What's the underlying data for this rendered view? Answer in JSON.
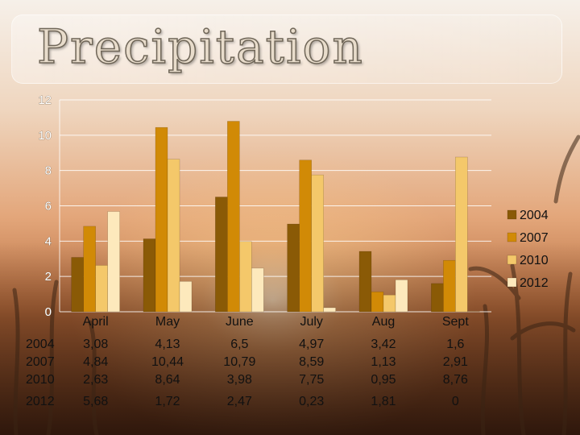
{
  "title": "Precipitation",
  "chart_data": {
    "type": "bar",
    "categories": [
      "April",
      "May",
      "June",
      "July",
      "Aug",
      "Sept"
    ],
    "series": [
      {
        "name": "2004",
        "values": [
          3.08,
          4.13,
          6.5,
          4.97,
          3.42,
          1.6
        ],
        "labels": [
          "3,08",
          "4,13",
          "6,5",
          "4,97",
          "3,42",
          "1,6"
        ],
        "color": "#8a5a06"
      },
      {
        "name": "2007",
        "values": [
          4.84,
          10.44,
          10.79,
          8.59,
          1.13,
          2.91
        ],
        "labels": [
          "4,84",
          "10,44",
          "10,79",
          "8,59",
          "1,13",
          "2,91"
        ],
        "color": "#d18a06"
      },
      {
        "name": "2010",
        "values": [
          2.63,
          8.64,
          3.98,
          7.75,
          0.95,
          8.76
        ],
        "labels": [
          "2,63",
          "8,64",
          "3,98",
          "7,75",
          "0,95",
          "8,76"
        ],
        "color": "#f4c86a"
      },
      {
        "name": "2012",
        "values": [
          5.68,
          1.72,
          2.47,
          0.23,
          1.81,
          0
        ],
        "labels": [
          "5,68",
          "1,72",
          "2,47",
          "0,23",
          "1,81",
          "0"
        ],
        "color": "#fde9bc"
      }
    ],
    "ylim": [
      0,
      12
    ],
    "yticks": [
      0,
      2,
      4,
      6,
      8,
      10,
      12
    ],
    "grid": true,
    "legend": "right",
    "data_table": true
  }
}
